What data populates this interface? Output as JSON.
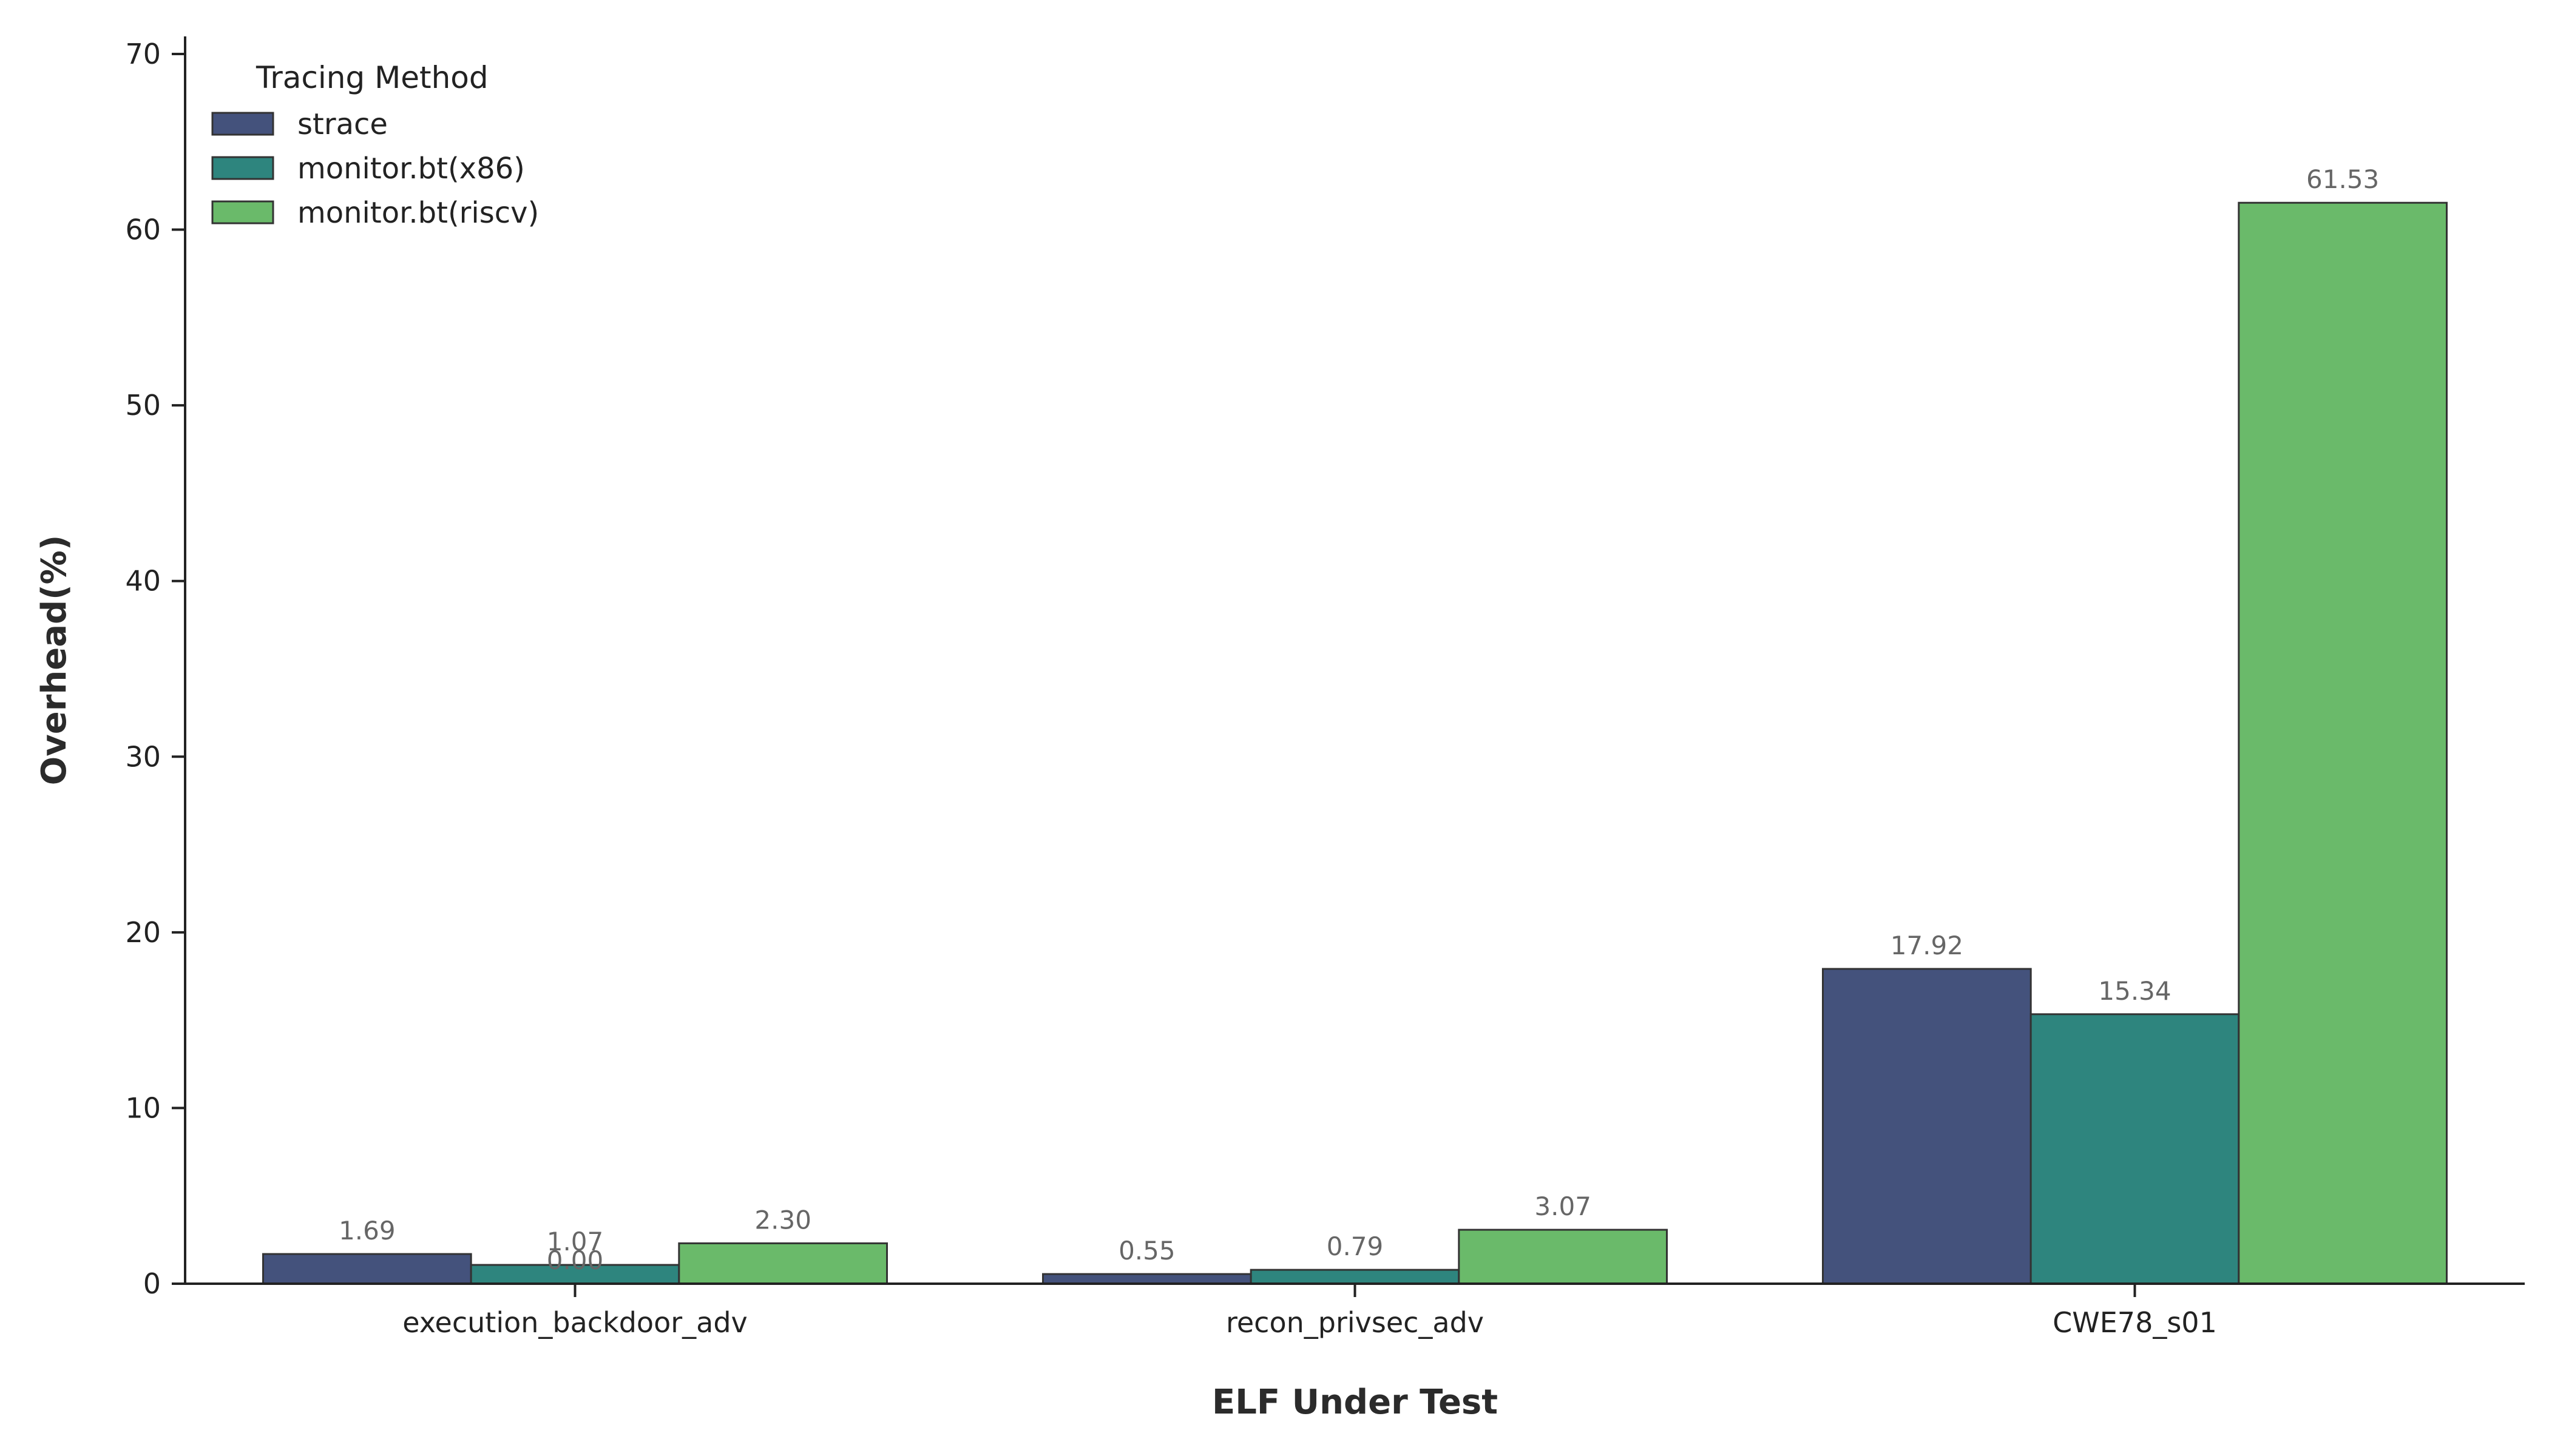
{
  "chart_data": {
    "type": "bar",
    "categories": [
      "execution_backdoor_adv",
      "recon_privsec_adv",
      "CWE78_s01"
    ],
    "series": [
      {
        "name": "strace",
        "color": "#44527c",
        "values": [
          1.69,
          0.55,
          17.92
        ]
      },
      {
        "name": "monitor.bt(x86)",
        "color": "#2e857e",
        "values": [
          1.07,
          0.79,
          15.34
        ]
      },
      {
        "name": "monitor.bt(riscv)",
        "color": "#6aba6a",
        "values": [
          2.3,
          3.07,
          61.53
        ]
      }
    ],
    "extra_labels": [
      {
        "category_index": 0,
        "value": 0.0,
        "text": "0.00"
      }
    ],
    "xlabel": "ELF Under Test",
    "ylabel": "Overhead(%)",
    "ylim": [
      0,
      71
    ],
    "yticks": [
      0,
      10,
      20,
      30,
      40,
      50,
      60,
      70
    ],
    "grid": false,
    "legend": {
      "title": "Tracing Method",
      "placement": "top-left"
    }
  }
}
